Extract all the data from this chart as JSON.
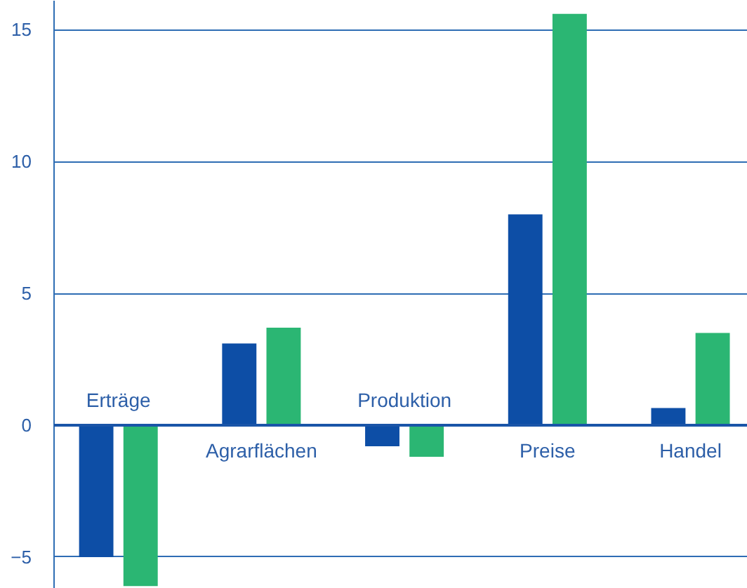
{
  "chart_data": {
    "type": "bar",
    "categories": [
      "Erträge",
      "Agrarflächen",
      "Produktion",
      "Preise",
      "Handel"
    ],
    "series": [
      {
        "color": "#0d4ea6",
        "values": [
          -5.0,
          3.1,
          -0.8,
          8.0,
          0.65
        ]
      },
      {
        "color": "#2bb673",
        "values": [
          -6.1,
          3.7,
          -1.2,
          15.6,
          3.5
        ]
      }
    ],
    "ylim": [
      -6.2,
      16.1
    ],
    "yticks": [
      -5,
      0,
      5,
      10,
      15
    ],
    "grid": "y"
  }
}
